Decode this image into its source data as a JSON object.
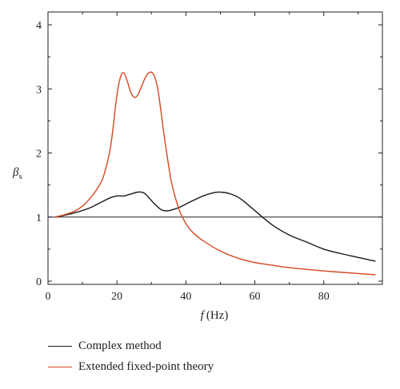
{
  "chart_data": {
    "type": "line",
    "xlabel_italic": "f",
    "xlabel_unit": "(Hz)",
    "ylabel_main": "β",
    "ylabel_sub": "s",
    "xlim": [
      0,
      97
    ],
    "ylim": [
      -0.05,
      4.2
    ],
    "xticks": [
      0,
      20,
      40,
      60,
      80
    ],
    "yticks": [
      0,
      1,
      2,
      3,
      4
    ],
    "grid": false,
    "legend_position": "below-left",
    "series": [
      {
        "name": "Complex method",
        "color": "#1a1a1a",
        "x": [
          2,
          5,
          8,
          12,
          15,
          18,
          20,
          22,
          24,
          26,
          27,
          28,
          29,
          31,
          33,
          35,
          38,
          41,
          45,
          48,
          50,
          53,
          56,
          60,
          65,
          70,
          75,
          80,
          85,
          90,
          95
        ],
        "y": [
          1.0,
          1.03,
          1.07,
          1.14,
          1.22,
          1.3,
          1.33,
          1.33,
          1.36,
          1.39,
          1.39,
          1.37,
          1.32,
          1.2,
          1.11,
          1.1,
          1.15,
          1.23,
          1.33,
          1.38,
          1.39,
          1.36,
          1.28,
          1.1,
          0.88,
          0.72,
          0.61,
          0.5,
          0.43,
          0.37,
          0.31
        ]
      },
      {
        "name": "Extended fixed-point theory",
        "color": "#d4471f",
        "x": [
          2,
          5,
          8,
          10,
          12,
          14,
          16,
          18,
          19,
          20,
          21,
          22,
          23,
          24,
          25,
          26,
          27,
          28,
          29,
          30,
          31,
          32,
          33,
          34,
          35,
          36,
          38,
          40,
          42,
          45,
          50,
          55,
          60,
          65,
          70,
          80,
          90,
          95
        ],
        "y": [
          1.0,
          1.04,
          1.1,
          1.17,
          1.28,
          1.42,
          1.62,
          2.05,
          2.45,
          2.9,
          3.18,
          3.25,
          3.12,
          2.95,
          2.87,
          2.9,
          3.02,
          3.15,
          3.24,
          3.26,
          3.18,
          2.95,
          2.55,
          2.15,
          1.8,
          1.5,
          1.12,
          0.9,
          0.76,
          0.63,
          0.47,
          0.36,
          0.29,
          0.25,
          0.21,
          0.16,
          0.12,
          0.1
        ]
      }
    ]
  }
}
